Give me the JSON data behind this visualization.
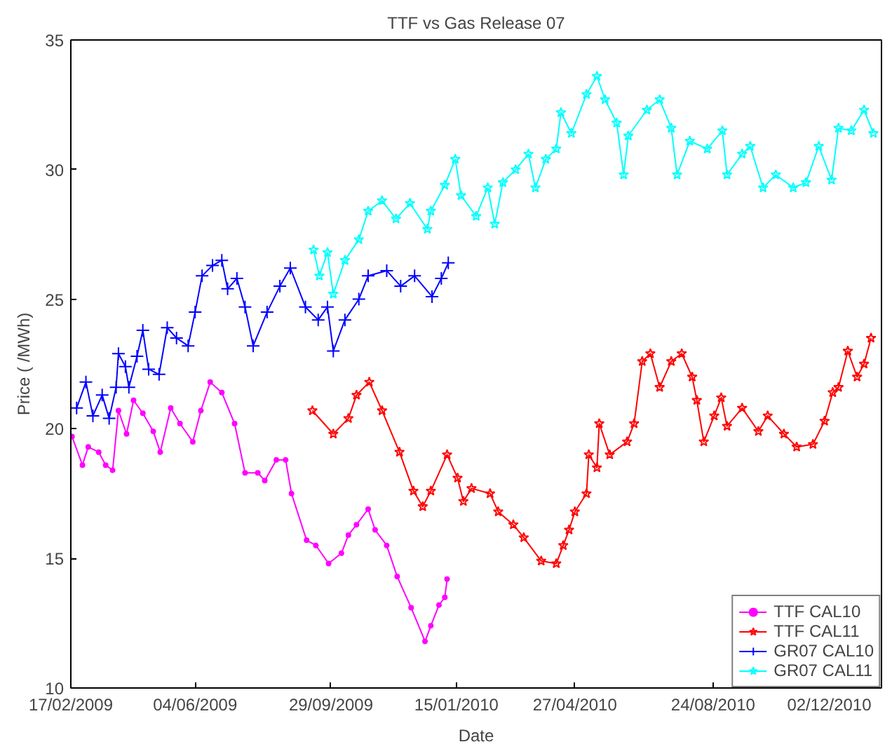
{
  "chart_data": {
    "type": "line",
    "title": "TTF vs Gas Release 07",
    "xlabel": "Date",
    "ylabel": "Price ( /MWh)",
    "xlim": [
      "2009-02-17",
      "2011-01-16"
    ],
    "ylim": [
      10,
      35
    ],
    "xticks": [
      {
        "value": "2009-02-17",
        "label": "17/02/2009"
      },
      {
        "value": "2009-06-04",
        "label": "04/06/2009"
      },
      {
        "value": "2009-09-29",
        "label": "29/09/2009"
      },
      {
        "value": "2010-01-15",
        "label": "15/01/2010"
      },
      {
        "value": "2010-04-27",
        "label": "27/04/2010"
      },
      {
        "value": "2010-08-24",
        "label": "24/08/2010"
      },
      {
        "value": "2010-12-02",
        "label": "02/12/2010"
      }
    ],
    "yticks": [
      10,
      15,
      20,
      25,
      30,
      35
    ],
    "grid": false,
    "legend": "bottom right",
    "line_style": "solid",
    "series": [
      {
        "name": "TTF CAL10",
        "color": "#ff00ff",
        "marker": "circle",
        "x": [
          "2009-02-18",
          "2009-02-27",
          "2009-03-04",
          "2009-03-13",
          "2009-03-19",
          "2009-03-25",
          "2009-03-30",
          "2009-04-06",
          "2009-04-12",
          "2009-04-20",
          "2009-04-29",
          "2009-05-05",
          "2009-05-14",
          "2009-05-22",
          "2009-06-02",
          "2009-06-09",
          "2009-06-17",
          "2009-06-27",
          "2009-07-08",
          "2009-07-17",
          "2009-07-28",
          "2009-08-03",
          "2009-08-13",
          "2009-08-21",
          "2009-08-26",
          "2009-09-08",
          "2009-09-16",
          "2009-09-27",
          "2009-10-08",
          "2009-10-14",
          "2009-10-21",
          "2009-10-31",
          "2009-11-06",
          "2009-11-16",
          "2009-11-25",
          "2009-12-07",
          "2009-12-19",
          "2009-12-24",
          "2009-12-31",
          "2010-01-05",
          "2010-01-07"
        ],
        "values": [
          19.7,
          18.6,
          19.3,
          19.1,
          18.6,
          18.4,
          20.7,
          19.8,
          21.1,
          20.6,
          19.9,
          19.1,
          20.8,
          20.2,
          19.5,
          20.7,
          21.8,
          21.4,
          20.2,
          18.3,
          18.3,
          18.0,
          18.8,
          18.8,
          17.5,
          15.7,
          15.5,
          14.8,
          15.2,
          15.9,
          16.3,
          16.9,
          16.1,
          15.5,
          14.3,
          13.1,
          11.8,
          12.4,
          13.2,
          13.5,
          14.2
        ]
      },
      {
        "name": "TTF CAL11",
        "color": "#ff0000",
        "marker": "star",
        "x": [
          "2009-09-13",
          "2009-10-01",
          "2009-10-14",
          "2009-10-21",
          "2009-11-01",
          "2009-11-12",
          "2009-11-27",
          "2009-12-09",
          "2009-12-17",
          "2009-12-24",
          "2010-01-07",
          "2010-01-16",
          "2010-01-21",
          "2010-01-28",
          "2010-02-13",
          "2010-02-20",
          "2010-03-05",
          "2010-03-14",
          "2010-03-29",
          "2010-04-11",
          "2010-04-17",
          "2010-04-22",
          "2010-04-27",
          "2010-05-07",
          "2010-05-09",
          "2010-05-16",
          "2010-05-18",
          "2010-05-27",
          "2010-06-11",
          "2010-06-17",
          "2010-06-24",
          "2010-07-01",
          "2010-07-09",
          "2010-07-19",
          "2010-07-28",
          "2010-08-06",
          "2010-08-10",
          "2010-08-16",
          "2010-08-25",
          "2010-08-31",
          "2010-09-05",
          "2010-09-18",
          "2010-10-02",
          "2010-10-10",
          "2010-10-24",
          "2010-11-04",
          "2010-11-18",
          "2010-11-28",
          "2010-12-05",
          "2010-12-10",
          "2010-12-18",
          "2010-12-26",
          "2011-01-01",
          "2011-01-07"
        ],
        "values": [
          20.7,
          19.8,
          20.4,
          21.3,
          21.8,
          20.7,
          19.1,
          17.6,
          17.0,
          17.6,
          19.0,
          18.1,
          17.2,
          17.7,
          17.5,
          16.8,
          16.3,
          15.8,
          14.9,
          14.8,
          15.5,
          16.1,
          16.8,
          17.5,
          19.0,
          18.5,
          20.2,
          19.0,
          19.5,
          20.2,
          22.6,
          22.9,
          21.6,
          22.6,
          22.9,
          22.0,
          21.1,
          19.5,
          20.5,
          21.2,
          20.1,
          20.8,
          19.9,
          20.5,
          19.8,
          19.3,
          19.4,
          20.3,
          21.4,
          21.6,
          23.0,
          22.0,
          22.5,
          23.5
        ]
      },
      {
        "name": "GR07 CAL10",
        "color": "#0000ff",
        "marker": "cross",
        "x": [
          "2009-02-22",
          "2009-03-02",
          "2009-03-08",
          "2009-03-16",
          "2009-03-22",
          "2009-03-28",
          "2009-03-30",
          "2009-04-05",
          "2009-04-08",
          "2009-04-15",
          "2009-04-20",
          "2009-04-25",
          "2009-05-04",
          "2009-05-11",
          "2009-05-19",
          "2009-05-29",
          "2009-06-04",
          "2009-06-10",
          "2009-06-19",
          "2009-06-27",
          "2009-07-02",
          "2009-07-10",
          "2009-07-17",
          "2009-07-24",
          "2009-08-05",
          "2009-08-16",
          "2009-08-25",
          "2009-09-07",
          "2009-09-18",
          "2009-09-26",
          "2009-10-01",
          "2009-10-11",
          "2009-10-23",
          "2009-10-31",
          "2009-11-16",
          "2009-11-28",
          "2009-12-10",
          "2009-12-25",
          "2010-01-02",
          "2010-01-08"
        ],
        "values": [
          20.8,
          21.8,
          20.5,
          21.3,
          20.4,
          21.6,
          22.9,
          22.4,
          21.6,
          22.8,
          23.8,
          22.3,
          22.1,
          23.9,
          23.5,
          23.2,
          24.5,
          25.9,
          26.3,
          26.5,
          25.4,
          25.8,
          24.7,
          23.2,
          24.5,
          25.5,
          26.2,
          24.7,
          24.2,
          24.7,
          23.0,
          24.2,
          25.0,
          25.9,
          26.1,
          25.5,
          25.9,
          25.1,
          25.8,
          26.4
        ]
      },
      {
        "name": "GR07 CAL11",
        "color": "#00ffff",
        "marker": "star",
        "x": [
          "2009-09-14",
          "2009-09-19",
          "2009-09-26",
          "2009-10-01",
          "2009-10-11",
          "2009-10-23",
          "2009-10-31",
          "2009-11-12",
          "2009-11-24",
          "2009-12-06",
          "2009-12-21",
          "2009-12-24",
          "2010-01-05",
          "2010-01-14",
          "2010-01-19",
          "2010-02-01",
          "2010-02-11",
          "2010-02-17",
          "2010-02-24",
          "2010-03-07",
          "2010-03-18",
          "2010-03-24",
          "2010-04-02",
          "2010-04-11",
          "2010-04-15",
          "2010-04-24",
          "2010-05-07",
          "2010-05-16",
          "2010-05-23",
          "2010-06-02",
          "2010-06-08",
          "2010-06-12",
          "2010-06-28",
          "2010-07-09",
          "2010-07-19",
          "2010-07-24",
          "2010-08-04",
          "2010-08-19",
          "2010-09-01",
          "2010-09-05",
          "2010-09-18",
          "2010-09-25",
          "2010-10-06",
          "2010-10-17",
          "2010-11-01",
          "2010-11-12",
          "2010-11-23",
          "2010-12-04",
          "2010-12-10",
          "2010-12-21",
          "2011-01-01",
          "2011-01-09"
        ],
        "values": [
          26.9,
          25.9,
          26.8,
          25.2,
          26.5,
          27.3,
          28.4,
          28.8,
          28.1,
          28.7,
          27.7,
          28.4,
          29.4,
          30.4,
          29.0,
          28.2,
          29.3,
          27.9,
          29.5,
          30.0,
          30.6,
          29.3,
          30.4,
          30.8,
          32.2,
          31.4,
          32.9,
          33.6,
          32.7,
          31.8,
          29.8,
          31.3,
          32.3,
          32.7,
          31.6,
          29.8,
          31.1,
          30.8,
          31.5,
          29.8,
          30.6,
          30.9,
          29.3,
          29.8,
          29.3,
          29.5,
          30.9,
          29.6,
          31.6,
          31.5,
          32.3,
          31.4
        ]
      }
    ]
  }
}
